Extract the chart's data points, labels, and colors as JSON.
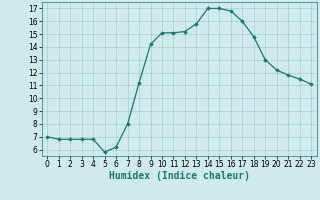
{
  "x": [
    0,
    1,
    2,
    3,
    4,
    5,
    6,
    7,
    8,
    9,
    10,
    11,
    12,
    13,
    14,
    15,
    16,
    17,
    18,
    19,
    20,
    21,
    22,
    23
  ],
  "y": [
    7.0,
    6.8,
    6.8,
    6.8,
    6.8,
    5.8,
    6.2,
    8.0,
    11.2,
    14.2,
    15.1,
    15.1,
    15.2,
    15.8,
    17.0,
    17.0,
    16.8,
    16.0,
    14.8,
    13.0,
    12.2,
    11.8,
    11.5,
    11.1
  ],
  "xlabel": "Humidex (Indice chaleur)",
  "xlim": [
    -0.5,
    23.5
  ],
  "ylim": [
    5.5,
    17.5
  ],
  "yticks": [
    6,
    7,
    8,
    9,
    10,
    11,
    12,
    13,
    14,
    15,
    16,
    17
  ],
  "xticks": [
    0,
    1,
    2,
    3,
    4,
    5,
    6,
    7,
    8,
    9,
    10,
    11,
    12,
    13,
    14,
    15,
    16,
    17,
    18,
    19,
    20,
    21,
    22,
    23
  ],
  "line_color": "#1a7a6e",
  "marker": "D",
  "marker_size": 1.8,
  "bg_color": "#ceeaea",
  "grid_color": "#aacece",
  "tick_fontsize": 5.5,
  "xlabel_fontsize": 7,
  "spine_color": "#1a7a6e"
}
